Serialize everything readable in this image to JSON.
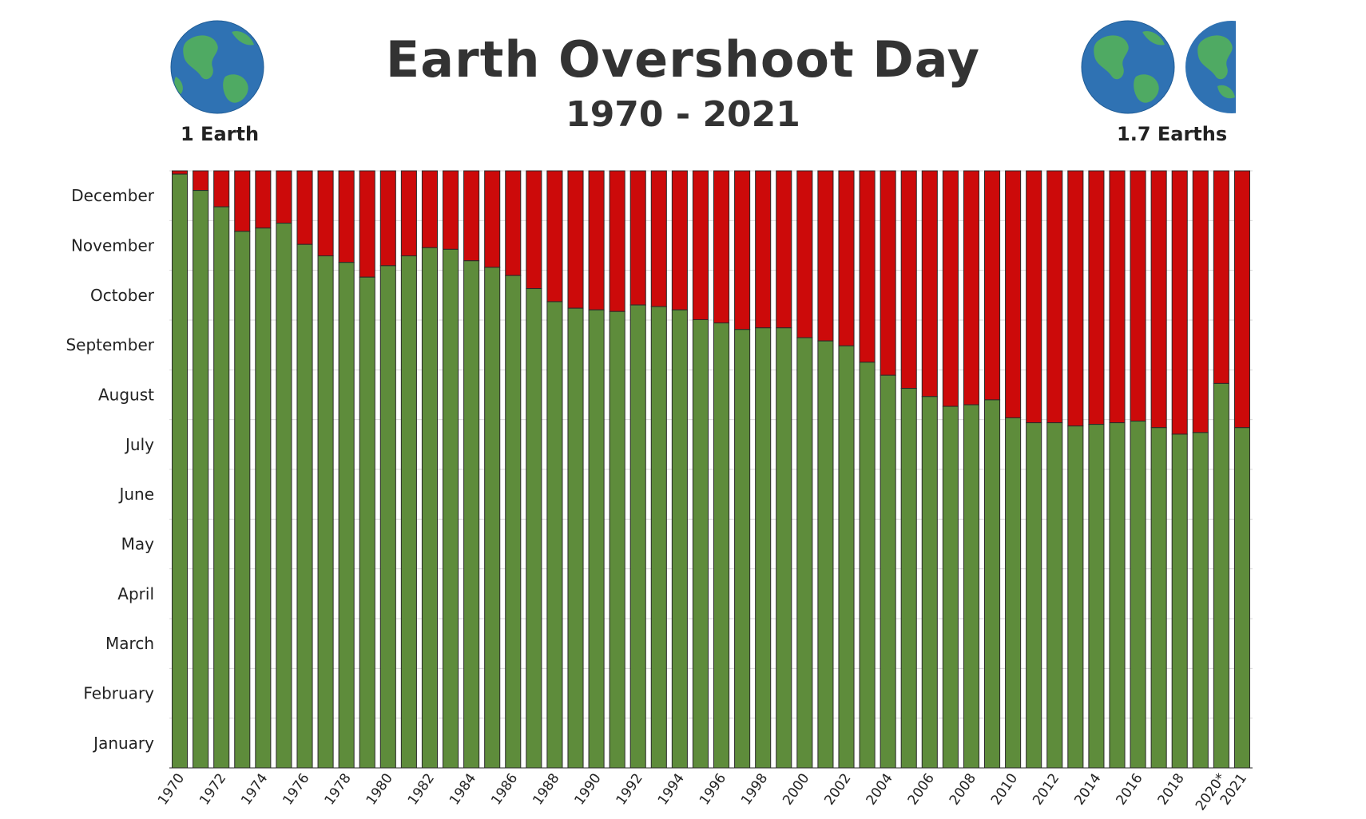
{
  "title": "Earth Overshoot Day",
  "subtitle": "1970 - 2021",
  "left_globe": {
    "icon": "earth-globe-icon",
    "label": "1 Earth"
  },
  "right_globe": {
    "icon": "earth-globe-icon",
    "label": "1.7 Earths"
  },
  "colors": {
    "used": "#5e8c3b",
    "overshoot": "#cc0a0a",
    "ocean": "#2f72b3",
    "land": "#4faa63",
    "grid": "#d8d8d8",
    "text": "#333333"
  },
  "chart_data": {
    "type": "bar",
    "title": "Earth Overshoot Day",
    "subtitle": "1970 - 2021",
    "ylabel": "",
    "xlabel": "",
    "y_axis_labels": [
      "January",
      "February",
      "March",
      "April",
      "May",
      "June",
      "July",
      "August",
      "September",
      "October",
      "November",
      "December"
    ],
    "ylim": [
      0,
      365
    ],
    "categories": [
      "1970",
      "1971",
      "1972",
      "1973",
      "1974",
      "1975",
      "1976",
      "1977",
      "1978",
      "1979",
      "1980",
      "1981",
      "1982",
      "1983",
      "1984",
      "1985",
      "1986",
      "1987",
      "1988",
      "1989",
      "1990",
      "1991",
      "1992",
      "1993",
      "1994",
      "1995",
      "1996",
      "1997",
      "1998",
      "1999",
      "2000",
      "2001",
      "2002",
      "2003",
      "2004",
      "2005",
      "2006",
      "2007",
      "2008",
      "2009",
      "2010",
      "2011",
      "2012",
      "2013",
      "2014",
      "2015",
      "2016",
      "2017",
      "2018",
      "2019",
      "2020*",
      "2021"
    ],
    "x_tick_labels": [
      "1970",
      "",
      "1972",
      "",
      "1974",
      "",
      "1976",
      "",
      "1978",
      "",
      "1980",
      "",
      "1982",
      "",
      "1984",
      "",
      "1986",
      "",
      "1988",
      "",
      "1990",
      "",
      "1992",
      "",
      "1994",
      "",
      "1996",
      "",
      "1998",
      "",
      "2000",
      "",
      "2002",
      "",
      "2004",
      "",
      "2006",
      "",
      "2008",
      "",
      "2010",
      "",
      "2012",
      "",
      "2014",
      "",
      "2016",
      "",
      "2018",
      "",
      "2020*",
      "2021"
    ],
    "series": [
      {
        "values": [
          363,
          353,
          343,
          328,
          330,
          333,
          320,
          313,
          309,
          300,
          307,
          313,
          318,
          317,
          310,
          306,
          301,
          293,
          285,
          281,
          280,
          279,
          283,
          282,
          280,
          274,
          272,
          268,
          269,
          269,
          263,
          261,
          258,
          248,
          240,
          232,
          227,
          221,
          222,
          225,
          214,
          211,
          211,
          209,
          210,
          211,
          212,
          208,
          204,
          205,
          235,
          208
        ]
      },
      {
        "values": [
          2,
          12,
          22,
          37,
          35,
          32,
          45,
          52,
          56,
          65,
          58,
          52,
          47,
          48,
          55,
          59,
          64,
          72,
          80,
          84,
          85,
          86,
          82,
          83,
          85,
          91,
          93,
          97,
          96,
          96,
          102,
          104,
          107,
          117,
          125,
          133,
          138,
          144,
          143,
          140,
          151,
          154,
          154,
          156,
          155,
          154,
          153,
          157,
          161,
          160,
          130,
          157
        ]
      }
    ],
    "stacked": true,
    "grid": true,
    "legend": "none"
  }
}
